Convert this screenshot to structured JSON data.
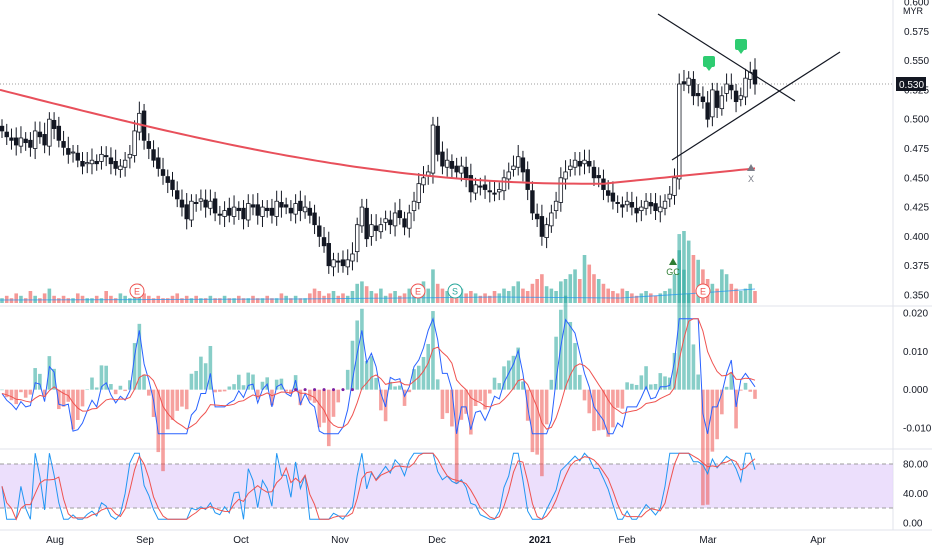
{
  "currency": "MYR",
  "last_price": "0.530",
  "chart_data": [
    {
      "type": "candlestick",
      "name": "price",
      "title": "",
      "x_ticks": [
        "Aug",
        "Sep",
        "Oct",
        "Nov",
        "Dec",
        "2021",
        "Feb",
        "Mar",
        "Apr"
      ],
      "y_ticks": [
        "0.600",
        "0.575",
        "0.550",
        "0.525",
        "0.500",
        "0.475",
        "0.450",
        "0.425",
        "0.400",
        "0.375",
        "0.350"
      ],
      "ylim": [
        0.345,
        0.6
      ],
      "close": [
        0.49,
        0.485,
        0.482,
        0.478,
        0.484,
        0.48,
        0.476,
        0.49,
        0.485,
        0.478,
        0.5,
        0.492,
        0.482,
        0.476,
        0.47,
        0.472,
        0.465,
        0.46,
        0.463,
        0.465,
        0.462,
        0.47,
        0.468,
        0.462,
        0.458,
        0.46,
        0.465,
        0.47,
        0.49,
        0.505,
        0.482,
        0.475,
        0.465,
        0.458,
        0.452,
        0.446,
        0.44,
        0.432,
        0.425,
        0.415,
        0.43,
        0.428,
        0.432,
        0.425,
        0.43,
        0.42,
        0.418,
        0.422,
        0.418,
        0.425,
        0.422,
        0.415,
        0.428,
        0.425,
        0.418,
        0.425,
        0.422,
        0.418,
        0.43,
        0.425,
        0.425,
        0.42,
        0.428,
        0.422,
        0.425,
        0.418,
        0.41,
        0.4,
        0.392,
        0.375,
        0.38,
        0.378,
        0.375,
        0.38,
        0.385,
        0.41,
        0.425,
        0.398,
        0.41,
        0.405,
        0.41,
        0.415,
        0.41,
        0.42,
        0.416,
        0.408,
        0.42,
        0.43,
        0.445,
        0.45,
        0.455,
        0.495,
        0.47,
        0.46,
        0.465,
        0.458,
        0.455,
        0.46,
        0.45,
        0.438,
        0.444,
        0.442,
        0.44,
        0.438,
        0.436,
        0.44,
        0.45,
        0.455,
        0.46,
        0.468,
        0.455,
        0.44,
        0.42,
        0.415,
        0.4,
        0.41,
        0.42,
        0.43,
        0.45,
        0.455,
        0.46,
        0.465,
        0.46,
        0.465,
        0.46,
        0.45,
        0.45,
        0.44,
        0.435,
        0.43,
        0.428,
        0.425,
        0.43,
        0.425,
        0.42,
        0.425,
        0.43,
        0.426,
        0.422,
        0.425,
        0.43,
        0.436,
        0.45,
        0.53,
        0.53,
        0.535,
        0.52,
        0.52,
        0.515,
        0.5,
        0.525,
        0.51,
        0.52,
        0.53,
        0.525,
        0.515,
        0.52,
        0.535,
        0.54,
        0.53
      ],
      "sma_line": {
        "start": 0.525,
        "end": 0.458,
        "min": 0.445
      },
      "triangle_pattern": "symmetrical triangle",
      "markers": [
        {
          "label": "E",
          "type": "earnings"
        },
        {
          "label": "E",
          "type": "earnings"
        },
        {
          "label": "S",
          "type": "split"
        },
        {
          "label": "E",
          "type": "earnings"
        },
        {
          "label": "GC",
          "type": "golden-cross"
        },
        {
          "label": "X",
          "type": "cross"
        }
      ],
      "volume": [
        2,
        3,
        2,
        4,
        3,
        2,
        5,
        3,
        2,
        4,
        6,
        3,
        2,
        3,
        2,
        2,
        4,
        3,
        2,
        2,
        3,
        2,
        5,
        3,
        2,
        4,
        3,
        2,
        6,
        8,
        4,
        3,
        2,
        3,
        2,
        2,
        3,
        4,
        2,
        3,
        2,
        3,
        2,
        2,
        3,
        2,
        2,
        3,
        2,
        2,
        3,
        2,
        2,
        3,
        2,
        2,
        3,
        2,
        2,
        4,
        3,
        2,
        3,
        2,
        2,
        4,
        6,
        5,
        3,
        4,
        5,
        3,
        4,
        3,
        5,
        8,
        9,
        7,
        5,
        4,
        6,
        3,
        4,
        5,
        3,
        4,
        6,
        7,
        8,
        9,
        6,
        14,
        8,
        6,
        5,
        4,
        5,
        6,
        4,
        5,
        4,
        3,
        4,
        3,
        5,
        4,
        6,
        5,
        7,
        9,
        6,
        5,
        8,
        10,
        12,
        7,
        6,
        5,
        9,
        10,
        12,
        14,
        10,
        20,
        16,
        12,
        10,
        8,
        6,
        5,
        4,
        6,
        5,
        4,
        3,
        4,
        5,
        4,
        3,
        4,
        5,
        6,
        12,
        22,
        30,
        26,
        20,
        18,
        14,
        10,
        8,
        6,
        14,
        12,
        8,
        6,
        5,
        6,
        8,
        5
      ]
    },
    {
      "type": "line",
      "name": "macd",
      "y_ticks": [
        "0.020",
        "0.010",
        "0.000",
        "-0.010"
      ],
      "ylim": [
        -0.013,
        0.02
      ]
    },
    {
      "type": "line",
      "name": "stochastic",
      "y_ticks": [
        "80.00",
        "40.00",
        "0.00"
      ],
      "ylim": [
        0,
        100
      ],
      "band": [
        20,
        80
      ]
    }
  ],
  "colors": {
    "up": "#26a69a",
    "down": "#ef5350",
    "candle_body_up": "#ffffff",
    "candle_body_down": "#131722",
    "sma": "#e8505b",
    "macd_line": "#2962ff",
    "signal_line": "#ef5350",
    "stoch_k": "#2196f3",
    "stoch_d": "#ef5350",
    "stoch_band": "#e1bee7"
  }
}
